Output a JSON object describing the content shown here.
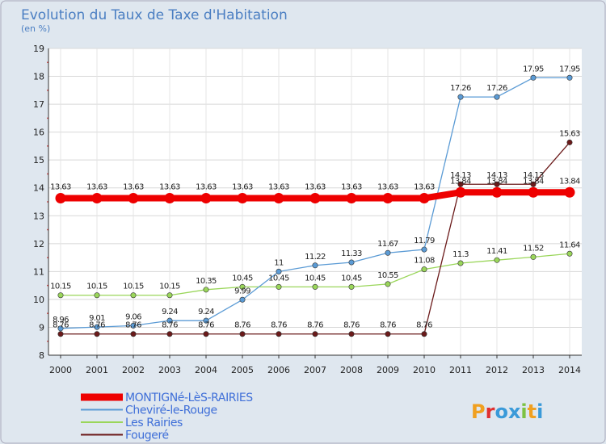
{
  "chart_data": {
    "type": "line",
    "title": "Evolution du Taux de Taxe d'Habitation",
    "subtitle": "(en %)",
    "x": [
      "2000",
      "2001",
      "2002",
      "2003",
      "2004",
      "2005",
      "2006",
      "2007",
      "2008",
      "2009",
      "2010",
      "2011",
      "2012",
      "2013",
      "2014"
    ],
    "ylim": [
      8,
      19
    ],
    "yticks": [
      8,
      9,
      10,
      11,
      12,
      13,
      14,
      15,
      16,
      17,
      18,
      19
    ],
    "series": [
      {
        "name": "MONTIGNé-LèS-RAIRIES",
        "color": "#ee0000",
        "values": [
          13.63,
          13.63,
          13.63,
          13.63,
          13.63,
          13.63,
          13.63,
          13.63,
          13.63,
          13.63,
          13.63,
          13.84,
          13.84,
          13.84,
          13.84
        ],
        "labels": [
          "13.63",
          "13.63",
          "13.63",
          "13.63",
          "13.63",
          "13.63",
          "13.63",
          "13.63",
          "13.63",
          "13.63",
          "13.63",
          "13.84",
          "13.84",
          "13.84",
          "13.84"
        ]
      },
      {
        "name": "Cheviré-le-Rouge",
        "color": "#5b9bd5",
        "values": [
          8.96,
          9.01,
          9.06,
          9.24,
          9.24,
          9.99,
          11,
          11.22,
          11.33,
          11.67,
          11.79,
          17.26,
          17.26,
          17.95,
          17.95
        ],
        "labels": [
          "8.96",
          "9.01",
          "9.06",
          "9.24",
          "9.24",
          "9.99",
          "11",
          "11.22",
          "11.33",
          "11.67",
          "11.79",
          "17.26",
          "17.26",
          "17.95",
          "17.95"
        ]
      },
      {
        "name": "Les Rairies",
        "color": "#9ad65a",
        "values": [
          10.15,
          10.15,
          10.15,
          10.15,
          10.35,
          10.45,
          10.45,
          10.45,
          10.45,
          10.55,
          11.08,
          11.3,
          11.41,
          11.52,
          11.64
        ],
        "labels": [
          "10.15",
          "10.15",
          "10.15",
          "10.15",
          "10.35",
          "10.45",
          "10.45",
          "10.45",
          "10.45",
          "10.55",
          "11.08",
          "11.3",
          "11.41",
          "11.52",
          "11.64"
        ]
      },
      {
        "name": "Fougeré",
        "color": "#6b1a1a",
        "values": [
          8.76,
          8.76,
          8.76,
          8.76,
          8.76,
          8.76,
          8.76,
          8.76,
          8.76,
          8.76,
          8.76,
          14.13,
          14.13,
          14.13,
          15.63
        ],
        "labels": [
          "8.76",
          "8.76",
          "8.76",
          "8.76",
          "8.76",
          "8.76",
          "8.76",
          "8.76",
          "8.76",
          "8.76",
          "8.76",
          "14.13",
          "14.13",
          "14.13",
          "15.63"
        ]
      }
    ],
    "legend_position": "bottom-left",
    "grid": true
  },
  "logo": {
    "text": "Proxiti",
    "colors": [
      "#f0a020",
      "#e03030",
      "#3a9ad9",
      "#3a9ad9",
      "#7cc242",
      "#f0a020",
      "#3a9ad9"
    ]
  }
}
